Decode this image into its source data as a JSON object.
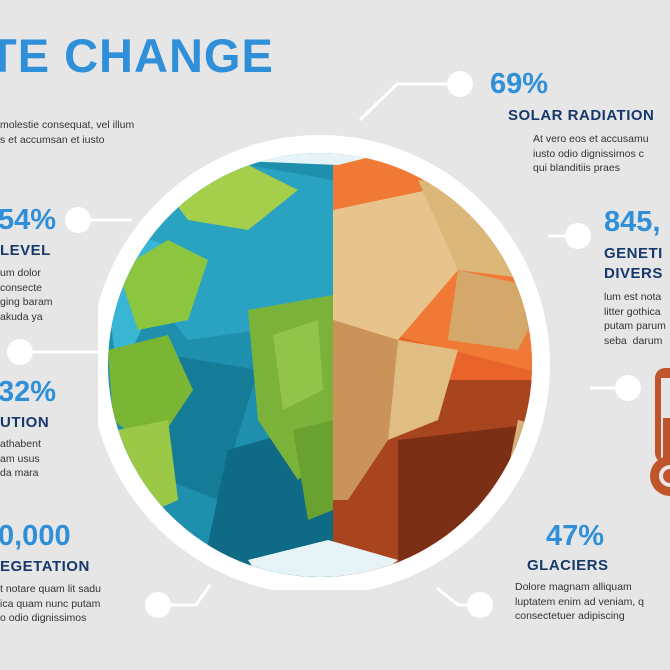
{
  "title": "TE CHANGE",
  "intro_text": "molestie consequat, vel illum\ns et accumsan et iusto",
  "items": [
    {
      "stat": "69%",
      "label": "SOLAR RADIATION",
      "text": "At vero eos et accusamu\niusto odio dignissimos c\nqui blanditiis praes"
    },
    {
      "stat": "845,",
      "label": "GENETI\nDIVERS",
      "text": "lum est nota\nlitter gothica\nputam parum\nseba  darum"
    },
    {
      "stat": "47%",
      "label": "GLACIERS",
      "text": "Dolore magnam alliquam\nluptatem enim ad veniam, q\nconsectetuer adipiscing"
    },
    {
      "stat": "54%",
      "label": "LEVEL",
      "text": "um dolor\nconsecte\nging baram\nakuda ya"
    },
    {
      "stat": "32%",
      "label": "UTION",
      "text": "athabent\nam usus\nda mara"
    },
    {
      "stat": "0,000",
      "label": "EGETATION",
      "text": "t notare quam lit sadu\nica quam nunc putam\no odio dignissimos"
    }
  ],
  "colors": {
    "accent": "#2f8fd8",
    "dark_label": "#17386b",
    "background": "#e6e6e6"
  }
}
